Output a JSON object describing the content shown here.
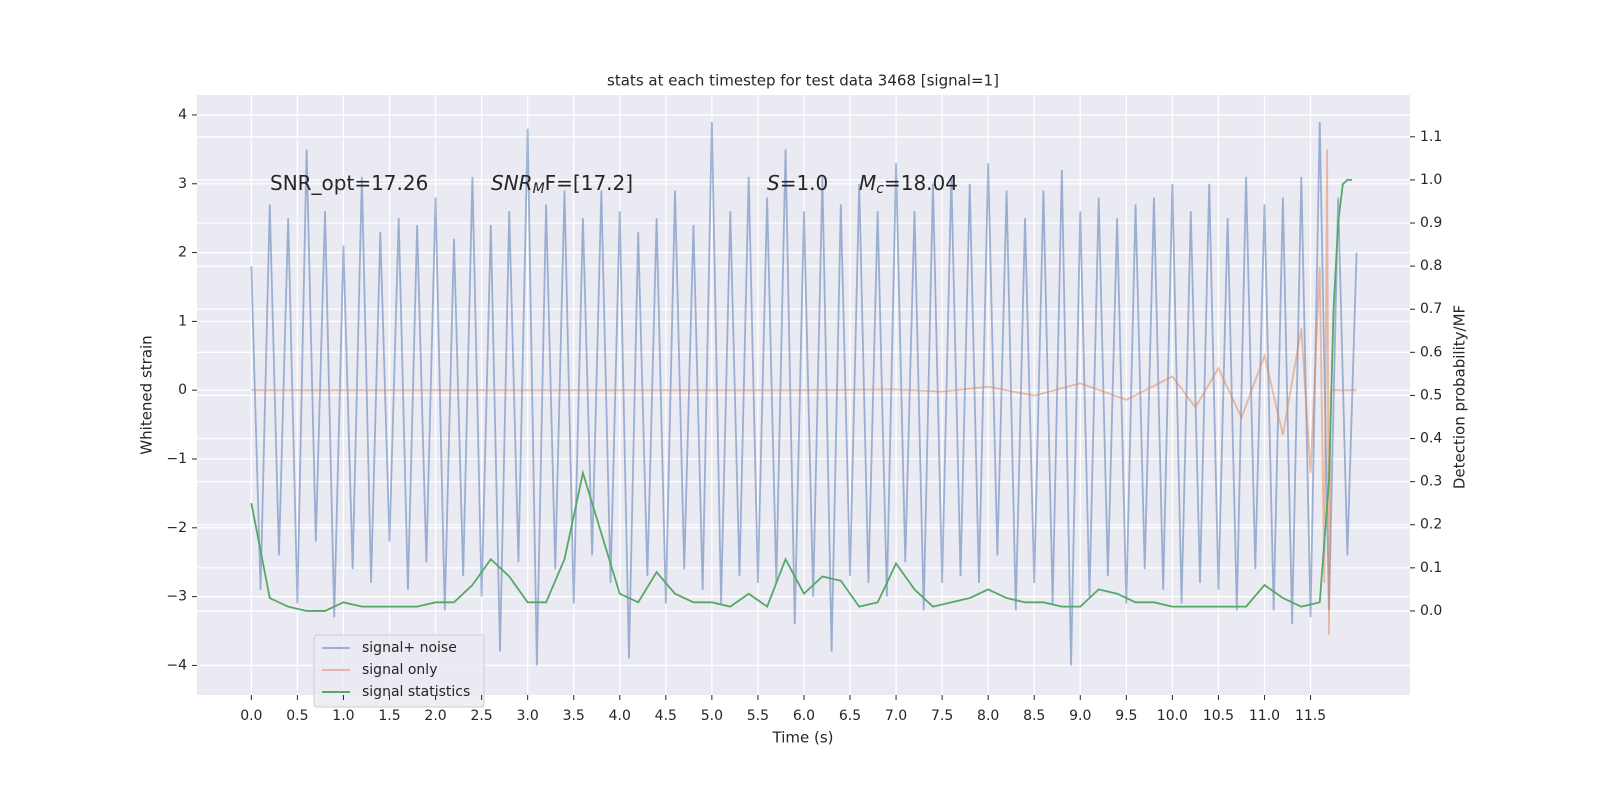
{
  "chart_data": {
    "type": "line",
    "title": "stats at each timestep for test data 3468 [signal=1]",
    "xlabel": "Time (s)",
    "ylabel": "Whitened strain",
    "y2label": "Detection probability/MF",
    "xlim": [
      -0.59,
      12.58
    ],
    "ylim": [
      -4.43,
      4.29
    ],
    "y2lim": [
      -0.195,
      1.197
    ],
    "xticks": [
      {
        "value": 0,
        "label": "0.0"
      },
      0.5,
      {
        "value": 1,
        "label": "1.0"
      },
      1.5,
      {
        "value": 2,
        "label": "2.0"
      },
      2.5,
      {
        "value": 3,
        "label": "3.0"
      },
      3.5,
      {
        "value": 4,
        "label": "4.0"
      },
      4.5,
      {
        "value": 5,
        "label": "5.0"
      },
      5.5,
      {
        "value": 6,
        "label": "6.0"
      },
      6.5,
      {
        "value": 7,
        "label": "7.0"
      },
      7.5,
      {
        "value": 8,
        "label": "8.0"
      },
      8.5,
      {
        "value": 9,
        "label": "9.0"
      },
      9.5,
      {
        "value": 10,
        "label": "10.0"
      },
      10.5,
      {
        "value": 11,
        "label": "11.0"
      },
      11.5
    ],
    "yticks": [
      {
        "value": -4,
        "label": "−4"
      },
      {
        "value": -3,
        "label": "−3"
      },
      {
        "value": -2,
        "label": "−2"
      },
      {
        "value": -1,
        "label": "−1"
      },
      0,
      1,
      2,
      3,
      4
    ],
    "y2ticks": [
      {
        "value": 0,
        "label": "0.0"
      },
      0.1,
      0.2,
      0.3,
      0.4,
      0.5,
      0.6,
      0.7,
      0.8,
      0.9,
      {
        "value": 1,
        "label": "1.0"
      },
      1.1
    ],
    "grid": true,
    "legend": "lower left",
    "annotations": [
      {
        "text": "SNR_opt=17.26"
      },
      {
        "italic": "SNR",
        "sub": "M",
        "text": "F=[17.2]"
      },
      {
        "italic": "S",
        "text": "=1.0"
      },
      {
        "italic": "M",
        "sub": "c",
        "text": "=18.04"
      }
    ],
    "series": [
      {
        "name": "signal+ noise",
        "color": "#4c72b0",
        "alpha": 0.5,
        "x": [
          0,
          0.1,
          0.2,
          0.3,
          0.4,
          0.5,
          0.6,
          0.7,
          0.8,
          0.9,
          1,
          1.1,
          1.2,
          1.3,
          1.4,
          1.5,
          1.6,
          1.7,
          1.8,
          1.9,
          2,
          2.1,
          2.2,
          2.3,
          2.4,
          2.5,
          2.6,
          2.7,
          2.8,
          2.9,
          3,
          3.1,
          3.2,
          3.3,
          3.4,
          3.5,
          3.6,
          3.7,
          3.8,
          3.9,
          4,
          4.1,
          4.2,
          4.3,
          4.4,
          4.5,
          4.6,
          4.7,
          4.8,
          4.9,
          5,
          5.1,
          5.2,
          5.3,
          5.4,
          5.5,
          5.6,
          5.7,
          5.8,
          5.9,
          6,
          6.1,
          6.2,
          6.3,
          6.4,
          6.5,
          6.6,
          6.7,
          6.8,
          6.9,
          7,
          7.1,
          7.2,
          7.3,
          7.4,
          7.5,
          7.6,
          7.7,
          7.8,
          7.9,
          8,
          8.1,
          8.2,
          8.3,
          8.4,
          8.5,
          8.6,
          8.7,
          8.8,
          8.9,
          9,
          9.1,
          9.2,
          9.3,
          9.4,
          9.5,
          9.6,
          9.7,
          9.8,
          9.9,
          10,
          10.1,
          10.2,
          10.3,
          10.4,
          10.5,
          10.6,
          10.7,
          10.8,
          10.9,
          11,
          11.1,
          11.2,
          11.3,
          11.4,
          11.5,
          11.6,
          11.7,
          11.8,
          11.9,
          12
        ],
        "values": [
          1.8,
          -2.9,
          2.7,
          -2.4,
          2.5,
          -3.1,
          3.5,
          -2.2,
          2.6,
          -3.3,
          2.1,
          -2.6,
          3.1,
          -2.8,
          2.3,
          -2.2,
          2.5,
          -2.9,
          2.4,
          -2.5,
          2.8,
          -3.2,
          2.2,
          -2.7,
          3.1,
          -3.0,
          2.4,
          -3.8,
          2.6,
          -2.5,
          3.8,
          -4.0,
          2.7,
          -2.6,
          2.9,
          -3.1,
          2.5,
          -2.4,
          2.9,
          -2.8,
          2.6,
          -3.9,
          2.3,
          -2.7,
          2.5,
          -3.1,
          2.9,
          -2.6,
          2.4,
          -2.9,
          3.9,
          -3.1,
          2.6,
          -2.7,
          3.1,
          -2.8,
          2.8,
          -2.8,
          3.5,
          -3.4,
          2.6,
          -3.0,
          3.1,
          -3.8,
          2.7,
          -2.7,
          3.0,
          -2.8,
          2.6,
          -3.0,
          3.3,
          -2.5,
          2.6,
          -3.2,
          3.0,
          -2.8,
          3.1,
          -2.7,
          3.0,
          -2.8,
          3.3,
          -2.4,
          2.9,
          -3.2,
          2.5,
          -2.8,
          2.9,
          -3.1,
          3.2,
          -4.0,
          2.6,
          -3.0,
          2.8,
          -2.7,
          2.5,
          -3.1,
          2.7,
          -2.6,
          2.8,
          -2.9,
          3.0,
          -3.1,
          2.6,
          -2.8,
          3.0,
          -2.9,
          2.5,
          -3.2,
          3.1,
          -2.6,
          2.7,
          -3.2,
          2.8,
          -3.4,
          3.1,
          -3.3,
          3.9,
          -3.2,
          2.8,
          -2.4,
          2.0
        ]
      },
      {
        "name": "signal only",
        "color": "#dd8452",
        "alpha": 0.5,
        "x": [
          0,
          2,
          4,
          6,
          7,
          7.5,
          8,
          8.5,
          9,
          9.5,
          10,
          10.25,
          10.5,
          10.75,
          11,
          11.2,
          11.4,
          11.5,
          11.6,
          11.65,
          11.68,
          11.7,
          11.72,
          11.8,
          12
        ],
        "values": [
          0,
          0,
          0,
          0,
          0.01,
          -0.02,
          0.05,
          -0.08,
          0.1,
          -0.14,
          0.2,
          -0.25,
          0.32,
          -0.4,
          0.5,
          -0.65,
          0.9,
          -1.2,
          1.8,
          -2.8,
          3.5,
          -3.55,
          0,
          0,
          0
        ]
      },
      {
        "name": "signal statistics",
        "color": "#55a868",
        "alpha": 1,
        "axis": "y2",
        "x": [
          0,
          0.2,
          0.4,
          0.6,
          0.8,
          1,
          1.2,
          1.4,
          1.6,
          1.8,
          2,
          2.2,
          2.4,
          2.6,
          2.8,
          3,
          3.2,
          3.4,
          3.6,
          3.8,
          4,
          4.2,
          4.4,
          4.6,
          4.8,
          5,
          5.2,
          5.4,
          5.6,
          5.8,
          6,
          6.2,
          6.4,
          6.6,
          6.8,
          7,
          7.2,
          7.4,
          7.6,
          7.8,
          8,
          8.2,
          8.4,
          8.6,
          8.8,
          9,
          9.2,
          9.4,
          9.6,
          9.8,
          10,
          10.2,
          10.4,
          10.6,
          10.8,
          11,
          11.2,
          11.4,
          11.6,
          11.7,
          11.75,
          11.8,
          11.85,
          11.9,
          11.95
        ],
        "values": [
          0.25,
          0.03,
          0.01,
          0,
          0,
          0.02,
          0.01,
          0.01,
          0.01,
          0.01,
          0.02,
          0.02,
          0.06,
          0.12,
          0.08,
          0.02,
          0.02,
          0.12,
          0.32,
          0.18,
          0.04,
          0.02,
          0.09,
          0.04,
          0.02,
          0.02,
          0.01,
          0.04,
          0.01,
          0.12,
          0.04,
          0.08,
          0.07,
          0.01,
          0.02,
          0.11,
          0.05,
          0.01,
          0.02,
          0.03,
          0.05,
          0.03,
          0.02,
          0.02,
          0.01,
          0.01,
          0.05,
          0.04,
          0.02,
          0.02,
          0.01,
          0.01,
          0.01,
          0.01,
          0.01,
          0.06,
          0.03,
          0.01,
          0.02,
          0.3,
          0.7,
          0.9,
          0.99,
          1,
          1
        ]
      }
    ]
  }
}
